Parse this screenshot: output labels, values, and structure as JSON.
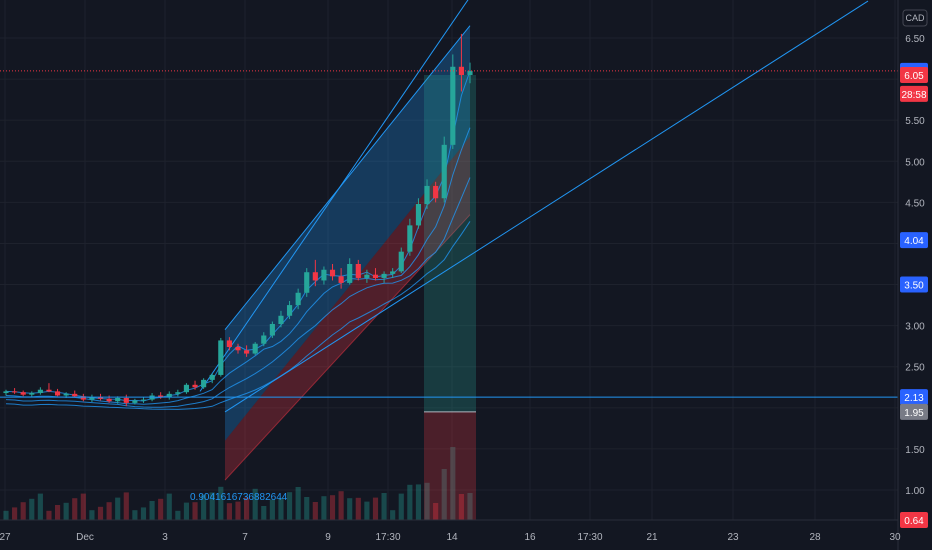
{
  "chart_data": {
    "type": "candlestick",
    "currency": "CAD",
    "y_range": [
      0.85,
      6.85
    ],
    "y_ticks": [
      "6.50",
      "5.50",
      "5.00",
      "4.50",
      "3.00",
      "2.50",
      "1.50",
      "1.00"
    ],
    "x_ticks": [
      "27",
      "Dec",
      "3",
      "7",
      "9",
      "17:30",
      "14",
      "16",
      "17:30",
      "21",
      "23",
      "28",
      "30"
    ],
    "candles": [
      [
        2.18,
        2.22,
        2.15,
        2.2
      ],
      [
        2.2,
        2.24,
        2.17,
        2.19
      ],
      [
        2.19,
        2.21,
        2.14,
        2.16
      ],
      [
        2.16,
        2.2,
        2.13,
        2.18
      ],
      [
        2.18,
        2.25,
        2.16,
        2.22
      ],
      [
        2.22,
        2.3,
        2.19,
        2.2
      ],
      [
        2.2,
        2.23,
        2.14,
        2.15
      ],
      [
        2.15,
        2.19,
        2.12,
        2.17
      ],
      [
        2.17,
        2.21,
        2.13,
        2.14
      ],
      [
        2.14,
        2.17,
        2.08,
        2.1
      ],
      [
        2.1,
        2.16,
        2.07,
        2.13
      ],
      [
        2.13,
        2.17,
        2.09,
        2.11
      ],
      [
        2.11,
        2.15,
        2.06,
        2.08
      ],
      [
        2.08,
        2.14,
        2.05,
        2.12
      ],
      [
        2.12,
        2.16,
        2.02,
        2.06
      ],
      [
        2.06,
        2.11,
        2.04,
        2.09
      ],
      [
        2.09,
        2.13,
        2.06,
        2.1
      ],
      [
        2.1,
        2.18,
        2.08,
        2.15
      ],
      [
        2.15,
        2.19,
        2.11,
        2.13
      ],
      [
        2.13,
        2.2,
        2.1,
        2.17
      ],
      [
        2.17,
        2.22,
        2.14,
        2.19
      ],
      [
        2.19,
        2.3,
        2.17,
        2.28
      ],
      [
        2.28,
        2.33,
        2.22,
        2.25
      ],
      [
        2.25,
        2.36,
        2.23,
        2.34
      ],
      [
        2.34,
        2.42,
        2.3,
        2.4
      ],
      [
        2.4,
        2.85,
        2.38,
        2.82
      ],
      [
        2.82,
        2.86,
        2.7,
        2.74
      ],
      [
        2.74,
        2.78,
        2.66,
        2.7
      ],
      [
        2.7,
        2.76,
        2.62,
        2.66
      ],
      [
        2.66,
        2.8,
        2.64,
        2.78
      ],
      [
        2.78,
        2.92,
        2.75,
        2.88
      ],
      [
        2.88,
        3.05,
        2.85,
        3.02
      ],
      [
        3.02,
        3.18,
        2.98,
        3.12
      ],
      [
        3.12,
        3.3,
        3.08,
        3.25
      ],
      [
        3.25,
        3.45,
        3.2,
        3.4
      ],
      [
        3.4,
        3.7,
        3.35,
        3.65
      ],
      [
        3.65,
        3.8,
        3.48,
        3.55
      ],
      [
        3.55,
        3.72,
        3.5,
        3.68
      ],
      [
        3.68,
        3.75,
        3.55,
        3.6
      ],
      [
        3.6,
        3.7,
        3.45,
        3.52
      ],
      [
        3.52,
        3.82,
        3.5,
        3.75
      ],
      [
        3.75,
        3.8,
        3.55,
        3.58
      ],
      [
        3.58,
        3.68,
        3.52,
        3.62
      ],
      [
        3.62,
        3.7,
        3.55,
        3.58
      ],
      [
        3.58,
        3.66,
        3.52,
        3.63
      ],
      [
        3.63,
        3.7,
        3.58,
        3.66
      ],
      [
        3.66,
        3.95,
        3.64,
        3.9
      ],
      [
        3.9,
        4.3,
        3.85,
        4.22
      ],
      [
        4.22,
        4.55,
        4.18,
        4.48
      ],
      [
        4.48,
        4.78,
        4.42,
        4.7
      ],
      [
        4.7,
        4.75,
        4.5,
        4.55
      ],
      [
        4.55,
        5.3,
        4.5,
        5.2
      ],
      [
        5.2,
        6.3,
        5.15,
        6.15
      ],
      [
        6.15,
        6.55,
        5.85,
        6.05
      ],
      [
        6.05,
        6.2,
        5.95,
        6.1
      ]
    ],
    "badges": [
      {
        "label": "6.10",
        "value": 6.1,
        "color": "#2962ff"
      },
      {
        "label": "6.05",
        "value": 6.05,
        "color": "#f23645"
      },
      {
        "label": "28:58",
        "value": 5.82,
        "color": "#f23645"
      },
      {
        "label": "4.04",
        "value": 4.04,
        "color": "#2962ff"
      },
      {
        "label": "3.50",
        "value": 3.5,
        "color": "#2962ff"
      },
      {
        "label": "2.13",
        "value": 2.13,
        "color": "#2962ff"
      },
      {
        "label": "1.95",
        "value": 1.95,
        "color": "#787b86"
      },
      {
        "label": "0.64",
        "value": 0.64,
        "color": "#f23645"
      }
    ],
    "annotation": "0.9041616736882644",
    "colors": {
      "up": "#26a69a",
      "down": "#f23645",
      "line": "#2196f3",
      "channel_blue": "#2962ff",
      "channel_red": "#f23645"
    }
  }
}
